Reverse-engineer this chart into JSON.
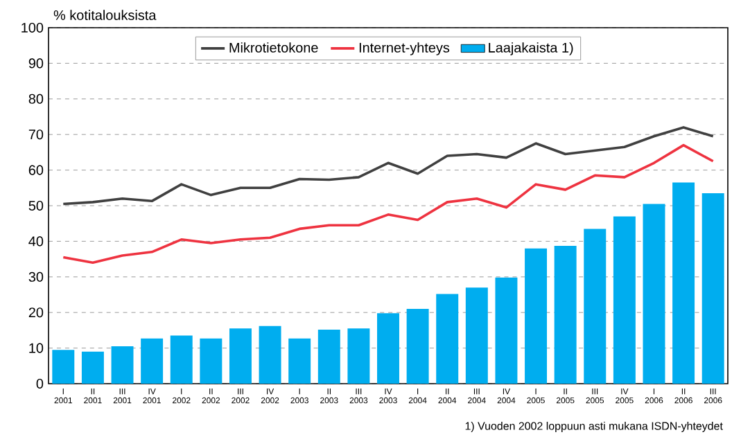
{
  "chart_data": {
    "type": "line",
    "ylabel": "% kotitalouksista",
    "categories": [
      "I 2001",
      "II 2001",
      "III 2001",
      "IV 2001",
      "I 2002",
      "II 2002",
      "III 2002",
      "IV 2002",
      "I 2003",
      "II 2003",
      "III 2003",
      "IV 2003",
      "I 2004",
      "II 2004",
      "III 2004",
      "IV 2004",
      "I 2005",
      "II 2005",
      "III 2005",
      "IV 2005",
      "I 2006",
      "II 2006",
      "III 2006"
    ],
    "series": [
      {
        "name": "Mikrotietokone",
        "color": "#404040",
        "values": [
          50.5,
          51,
          52,
          51.3,
          56,
          53,
          55,
          55,
          57.5,
          57.3,
          58,
          62,
          59,
          64,
          64.5,
          63.5,
          67.5,
          64.5,
          65.5,
          66.5,
          69.5,
          72,
          69.5
        ]
      },
      {
        "name": "Internet-yhteys",
        "color": "#ee3340",
        "values": [
          35.5,
          34,
          36,
          37,
          40.5,
          39.5,
          40.5,
          41,
          43.5,
          44.5,
          44.5,
          47.5,
          46,
          51,
          52,
          49.5,
          56,
          54.5,
          58.5,
          58,
          62,
          67,
          62.5
        ]
      },
      {
        "name": "Laajakaista 1)",
        "type": "bar",
        "color": "#00adef",
        "values": [
          9.5,
          9,
          10.5,
          12.7,
          13.5,
          12.7,
          15.5,
          16.2,
          12.7,
          15.2,
          15.5,
          19.8,
          21,
          25.2,
          27,
          29.8,
          38,
          38.7,
          43.5,
          47,
          50.5,
          56.5,
          53.5
        ]
      }
    ],
    "ylim": [
      0,
      100
    ],
    "yticks": [
      0,
      10,
      20,
      30,
      40,
      50,
      60,
      70,
      80,
      90,
      100
    ],
    "grid": "y",
    "legend": "top",
    "annotations": [
      "1) Vuoden 2002 loppuun asti mukana ISDN-yhteydet"
    ]
  }
}
